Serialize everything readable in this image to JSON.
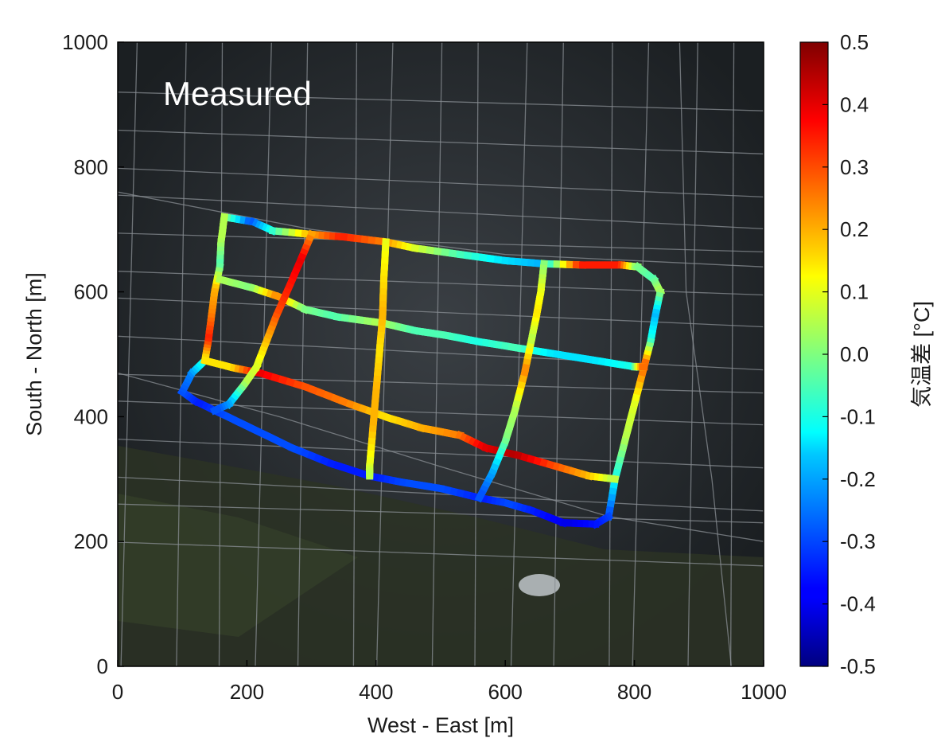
{
  "panel_label": "Measured",
  "map": {
    "x_axis": {
      "label": "West - East [m]",
      "range": [
        0,
        1000
      ],
      "ticks": [
        "0",
        "200",
        "400",
        "600",
        "800",
        "1000"
      ]
    },
    "y_axis": {
      "label": "South - North [m]",
      "range": [
        0,
        1000
      ],
      "ticks": [
        "0",
        "200",
        "400",
        "600",
        "800",
        "1000"
      ]
    },
    "background": "aerial photograph of a dense urban district with a park to the south",
    "colors": {
      "low": "#00007f",
      "mid": "#7fff7f",
      "high": "#7f0000"
    }
  },
  "colorbar": {
    "title": "気温差 [°C]",
    "range": [
      -0.5,
      0.5
    ],
    "ticks": [
      "0.5",
      "0.4",
      "0.3",
      "0.2",
      "0.1",
      "0.0",
      "-0.1",
      "-0.2",
      "-0.3",
      "-0.4",
      "-0.5"
    ],
    "colormap": "jet"
  },
  "routes": [
    {
      "points": [
        [
          165,
          720
        ],
        [
          210,
          712
        ],
        [
          240,
          698
        ],
        [
          300,
          692
        ],
        [
          350,
          688
        ],
        [
          415,
          680
        ],
        [
          460,
          670
        ],
        [
          530,
          660
        ],
        [
          600,
          650
        ],
        [
          660,
          645
        ],
        [
          720,
          643
        ],
        [
          780,
          643
        ],
        [
          805,
          640
        ],
        [
          830,
          620
        ],
        [
          840,
          600
        ],
        [
          832,
          560
        ],
        [
          825,
          520
        ],
        [
          815,
          480
        ],
        [
          800,
          420
        ],
        [
          785,
          360
        ],
        [
          770,
          300
        ],
        [
          760,
          240
        ],
        [
          740,
          228
        ],
        [
          690,
          230
        ],
        [
          640,
          250
        ],
        [
          600,
          262
        ],
        [
          560,
          270
        ],
        [
          500,
          285
        ],
        [
          440,
          295
        ],
        [
          390,
          305
        ],
        [
          330,
          325
        ],
        [
          270,
          350
        ],
        [
          210,
          380
        ],
        [
          160,
          405
        ],
        [
          120,
          425
        ],
        [
          100,
          440
        ],
        [
          115,
          470
        ],
        [
          135,
          490
        ]
      ],
      "values": [
        0.05,
        -0.3,
        -0.1,
        0.2,
        0.35,
        0.25,
        0.1,
        -0.05,
        -0.15,
        -0.2,
        0.35,
        0.35,
        0.0,
        -0.05,
        0.05,
        -0.2,
        -0.1,
        0.3,
        0.1,
        0.05,
        -0.1,
        -0.3,
        -0.35,
        -0.4,
        -0.35,
        -0.3,
        -0.35,
        -0.3,
        -0.3,
        -0.35,
        -0.35,
        -0.3,
        -0.3,
        -0.3,
        -0.35,
        -0.3,
        -0.25,
        -0.1
      ]
    },
    {
      "points": [
        [
          165,
          720
        ],
        [
          160,
          680
        ],
        [
          158,
          640
        ],
        [
          150,
          600
        ],
        [
          145,
          560
        ],
        [
          140,
          520
        ],
        [
          135,
          490
        ],
        [
          180,
          478
        ],
        [
          220,
          470
        ],
        [
          290,
          448
        ],
        [
          360,
          420
        ],
        [
          420,
          398
        ],
        [
          470,
          382
        ],
        [
          530,
          370
        ],
        [
          570,
          350
        ],
        [
          620,
          338
        ],
        [
          680,
          320
        ],
        [
          730,
          305
        ],
        [
          770,
          300
        ]
      ],
      "values": [
        0.05,
        0.05,
        -0.05,
        0.2,
        0.25,
        0.35,
        0.15,
        0.15,
        0.4,
        0.3,
        0.25,
        0.15,
        0.2,
        0.25,
        0.4,
        0.45,
        0.3,
        0.2,
        0.05
      ]
    },
    {
      "points": [
        [
          158,
          620
        ],
        [
          210,
          606
        ],
        [
          250,
          592
        ],
        [
          290,
          572
        ],
        [
          340,
          560
        ],
        [
          410,
          550
        ],
        [
          460,
          538
        ],
        [
          510,
          530
        ],
        [
          560,
          520
        ],
        [
          620,
          510
        ],
        [
          680,
          500
        ],
        [
          740,
          490
        ],
        [
          800,
          480
        ],
        [
          815,
          480
        ]
      ],
      "values": [
        0.05,
        0.0,
        0.25,
        0.0,
        -0.05,
        0.05,
        -0.05,
        -0.05,
        -0.1,
        -0.05,
        -0.15,
        -0.15,
        -0.1,
        0.3
      ]
    },
    {
      "points": [
        [
          300,
          692
        ],
        [
          282,
          648
        ],
        [
          262,
          600
        ],
        [
          245,
          560
        ],
        [
          230,
          520
        ],
        [
          215,
          480
        ],
        [
          195,
          450
        ],
        [
          172,
          420
        ],
        [
          150,
          410
        ]
      ],
      "values": [
        0.2,
        0.4,
        0.35,
        0.3,
        0.2,
        0.1,
        0.05,
        -0.2,
        -0.3
      ]
    },
    {
      "points": [
        [
          415,
          680
        ],
        [
          412,
          620
        ],
        [
          410,
          560
        ],
        [
          405,
          500
        ],
        [
          400,
          440
        ],
        [
          395,
          380
        ],
        [
          390,
          320
        ],
        [
          390,
          305
        ]
      ],
      "values": [
        0.1,
        0.15,
        0.2,
        0.15,
        0.2,
        0.2,
        0.1,
        0.05
      ]
    },
    {
      "points": [
        [
          660,
          645
        ],
        [
          655,
          600
        ],
        [
          648,
          560
        ],
        [
          640,
          520
        ],
        [
          630,
          470
        ],
        [
          615,
          410
        ],
        [
          600,
          360
        ],
        [
          580,
          310
        ],
        [
          560,
          270
        ]
      ],
      "values": [
        0.0,
        0.1,
        0.15,
        0.05,
        0.25,
        0.05,
        0.0,
        -0.2,
        -0.3
      ]
    }
  ]
}
